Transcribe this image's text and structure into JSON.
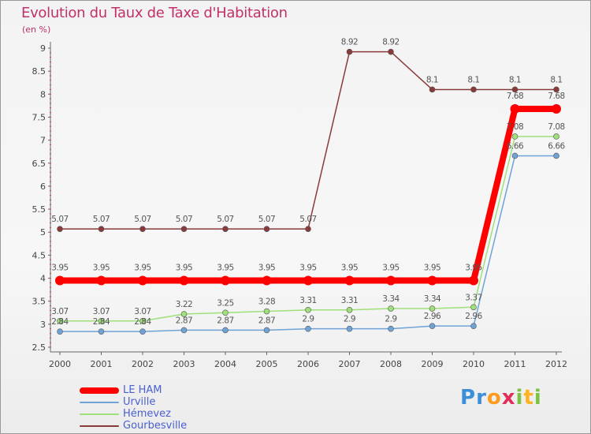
{
  "chart_data": {
    "type": "line",
    "title": "Evolution du Taux de Taxe d'Habitation",
    "subtitle": "(en %)",
    "xlabel": "",
    "ylabel": "",
    "x": [
      "2000",
      "2001",
      "2002",
      "2003",
      "2004",
      "2005",
      "2006",
      "2007",
      "2008",
      "2009",
      "2010",
      "2011",
      "2012"
    ],
    "ylim": [
      2.5,
      9
    ],
    "yticks": [
      "2.5",
      "3",
      "3.5",
      "4",
      "4.5",
      "5",
      "5.5",
      "6",
      "6.5",
      "7",
      "7.5",
      "8",
      "8.5",
      "9"
    ],
    "grid": false,
    "legend_position": "bottom-left",
    "series": [
      {
        "name": "LE HAM",
        "color": "#ff0000",
        "values": [
          3.95,
          3.95,
          3.95,
          3.95,
          3.95,
          3.95,
          3.95,
          3.95,
          3.95,
          3.95,
          3.95,
          7.68,
          7.68
        ],
        "labels": [
          "3.95",
          "3.95",
          "3.95",
          "3.95",
          "3.95",
          "3.95",
          "3.95",
          "3.95",
          "3.95",
          "3.95",
          "3.95",
          "7.68",
          "7.68"
        ]
      },
      {
        "name": "Urville",
        "color": "#6fa3d8",
        "values": [
          2.84,
          2.84,
          2.84,
          2.87,
          2.87,
          2.87,
          2.9,
          2.9,
          2.9,
          2.96,
          2.96,
          6.66,
          6.66
        ],
        "labels": [
          "2.84",
          "2.84",
          "2.84",
          "2.87",
          "2.87",
          "2.87",
          "2.9",
          "2.9",
          "2.9",
          "2.96",
          "2.96",
          "6.66",
          "6.66"
        ]
      },
      {
        "name": "Hémevez",
        "color": "#9ee07a",
        "values": [
          3.07,
          3.07,
          3.07,
          3.22,
          3.25,
          3.28,
          3.31,
          3.31,
          3.34,
          3.34,
          3.37,
          7.08,
          7.08
        ],
        "labels": [
          "3.07",
          "3.07",
          "3.07",
          "3.22",
          "3.25",
          "3.28",
          "3.31",
          "3.31",
          "3.34",
          "3.34",
          "3.37",
          "7.08",
          "7.08"
        ]
      },
      {
        "name": "Gourbesville",
        "color": "#8a3a3a",
        "values": [
          5.07,
          5.07,
          5.07,
          5.07,
          5.07,
          5.07,
          5.07,
          8.92,
          8.92,
          8.1,
          8.1,
          8.1,
          8.1
        ],
        "labels": [
          "5.07",
          "5.07",
          "5.07",
          "5.07",
          "5.07",
          "5.07",
          "5.07",
          "8.92",
          "8.92",
          "8.1",
          "8.1",
          "8.1",
          "8.1"
        ]
      }
    ]
  },
  "logo": {
    "letters": [
      "P",
      "r",
      "o",
      "x",
      "i",
      "t",
      "i"
    ]
  }
}
